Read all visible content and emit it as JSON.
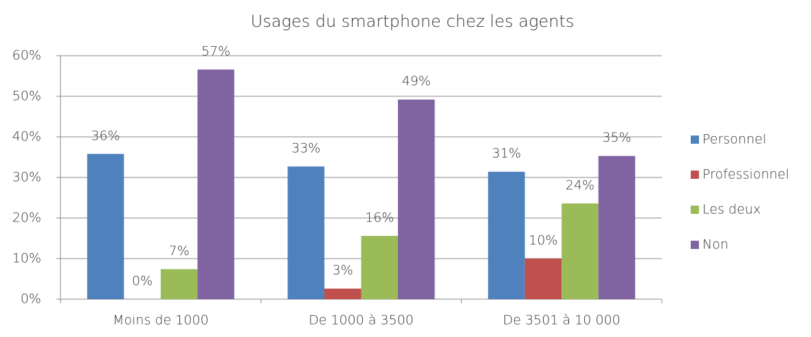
{
  "chart_data": {
    "type": "bar",
    "title": "Usages du smartphone chez les agents",
    "categories": [
      "Moins de 1000",
      "De 1000 à 3500",
      "De 3501 à 10 000"
    ],
    "series": [
      {
        "name": "Personnel",
        "color": "#4f81bd",
        "values": [
          35.8,
          32.7,
          31.4
        ],
        "value_labels": [
          "36%",
          "33%",
          "31%"
        ]
      },
      {
        "name": "Professionnel",
        "color": "#c0504d",
        "values": [
          0,
          2.6,
          10.0
        ],
        "value_labels": [
          "0%",
          "3%",
          "10%"
        ]
      },
      {
        "name": "Les deux",
        "color": "#9bbb59",
        "values": [
          7.4,
          15.6,
          23.6
        ],
        "value_labels": [
          "7%",
          "16%",
          "24%"
        ]
      },
      {
        "name": "Non",
        "color": "#8064a2",
        "values": [
          56.6,
          49.2,
          35.3
        ],
        "value_labels": [
          "57%",
          "49%",
          "35%"
        ]
      }
    ],
    "ylim": [
      0,
      60
    ],
    "yticks": [
      {
        "value": 0,
        "label": "0%"
      },
      {
        "value": 10,
        "label": "10%"
      },
      {
        "value": 20,
        "label": "20%"
      },
      {
        "value": 30,
        "label": "30%"
      },
      {
        "value": 40,
        "label": "40%"
      },
      {
        "value": 50,
        "label": "50%"
      },
      {
        "value": 60,
        "label": "60%"
      }
    ],
    "grid": true,
    "legend": "right"
  }
}
